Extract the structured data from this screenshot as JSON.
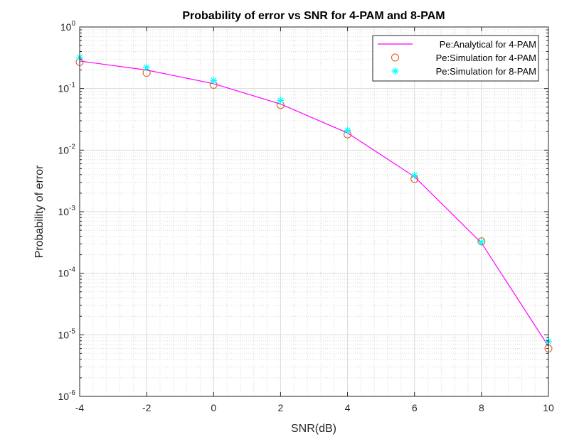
{
  "chart_data": {
    "type": "line",
    "title": "Probability of error vs SNR for 4-PAM and 8-PAM",
    "xlabel": "SNR(dB)",
    "ylabel": "Probability of error",
    "xscale": "linear",
    "yscale": "log",
    "xlim": [
      -4,
      10
    ],
    "ylim": [
      1e-06,
      1
    ],
    "xticks": [
      -4,
      -2,
      0,
      2,
      4,
      6,
      8,
      10
    ],
    "xtick_labels": [
      "-4",
      "-2",
      "0",
      "2",
      "4",
      "6",
      "8",
      "10"
    ],
    "yticks": [
      {
        "value": 1,
        "base": "10",
        "exp": "0"
      },
      {
        "value": 0.1,
        "base": "10",
        "exp": "-1"
      },
      {
        "value": 0.01,
        "base": "10",
        "exp": "-2"
      },
      {
        "value": 0.001,
        "base": "10",
        "exp": "-3"
      },
      {
        "value": 0.0001,
        "base": "10",
        "exp": "-4"
      },
      {
        "value": 1e-05,
        "base": "10",
        "exp": "-5"
      },
      {
        "value": 1e-06,
        "base": "10",
        "exp": "-6"
      }
    ],
    "grid": true,
    "minor_grid": true,
    "legend_position": "top-right",
    "series": [
      {
        "name": "Pe:Analytical for 4-PAM",
        "style": "line",
        "color": "#ff00ff",
        "x": [
          -4,
          -2,
          0,
          2,
          4,
          6,
          8,
          10
        ],
        "y": [
          0.28,
          0.2,
          0.12,
          0.056,
          0.019,
          0.0037,
          0.00031,
          6.5e-06
        ]
      },
      {
        "name": "Pe:Simulation for 4-PAM",
        "style": "circle",
        "color": "#d95319",
        "x": [
          -4,
          -2,
          0,
          2,
          4,
          6,
          8,
          10
        ],
        "y": [
          0.27,
          0.18,
          0.115,
          0.054,
          0.018,
          0.0034,
          0.00033,
          6e-06
        ]
      },
      {
        "name": "Pe:Simulation for 8-PAM",
        "style": "asterisk",
        "color": "#00ffff",
        "x": [
          -4,
          -2,
          0,
          2,
          4,
          6,
          8,
          10
        ],
        "y": [
          0.32,
          0.22,
          0.135,
          0.064,
          0.021,
          0.0039,
          0.00032,
          7.8e-06
        ]
      }
    ]
  }
}
